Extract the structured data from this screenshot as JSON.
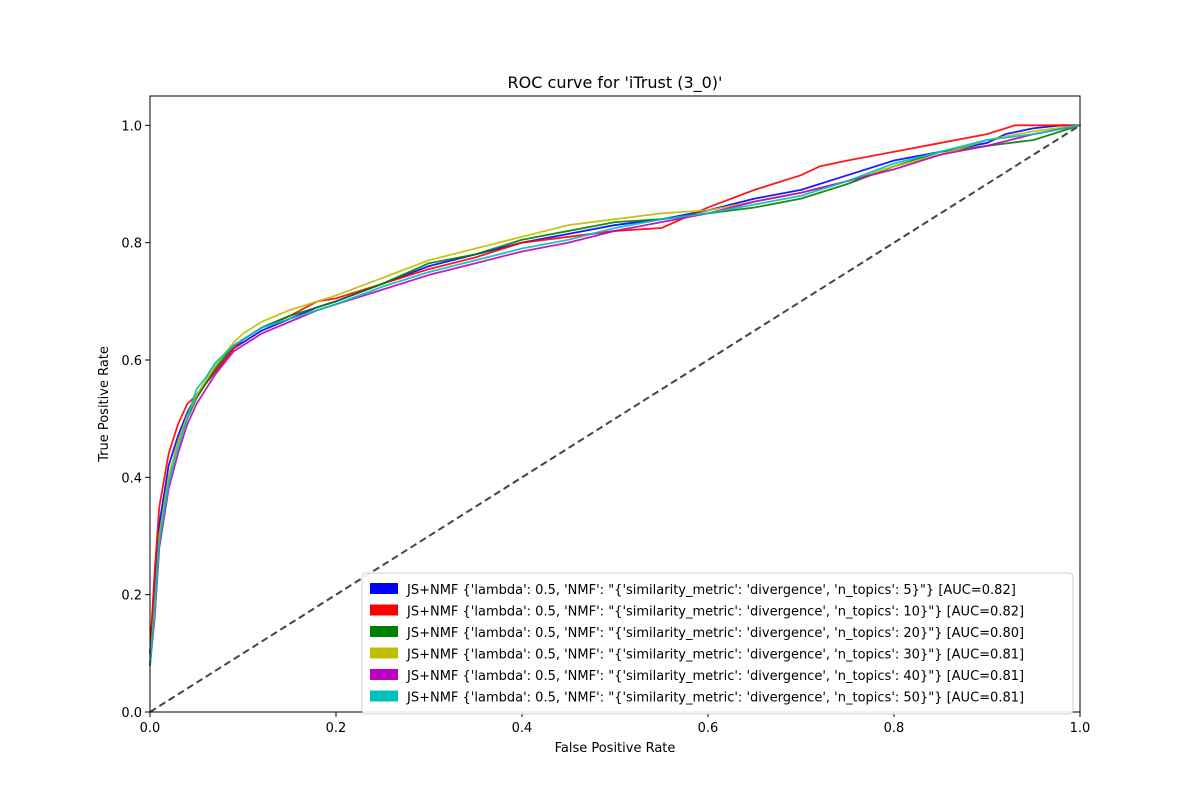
{
  "chart_data": {
    "type": "line",
    "title": "ROC curve for 'iTrust (3_0)'",
    "xlabel": "False Positive Rate",
    "ylabel": "True Positive Rate",
    "xlim": [
      0.0,
      1.0
    ],
    "ylim": [
      0.0,
      1.05
    ],
    "xticks": [
      "0.0",
      "0.2",
      "0.4",
      "0.6",
      "0.8",
      "1.0"
    ],
    "yticks": [
      "0.0",
      "0.2",
      "0.4",
      "0.6",
      "0.8",
      "1.0"
    ],
    "grid": false,
    "legend_position": "lower-right",
    "chance_line": {
      "x": [
        0,
        1
      ],
      "y": [
        0,
        1
      ],
      "style": "dashed",
      "color": "#444444"
    },
    "series": [
      {
        "name": "JS+NMF {'lambda': 0.5, 'NMF': \"{'similarity_metric': 'divergence', 'n_topics': 5}\"} [AUC=0.82]",
        "color": "#0000ff",
        "x": [
          0,
          0.005,
          0.01,
          0.02,
          0.03,
          0.04,
          0.05,
          0.06,
          0.07,
          0.08,
          0.09,
          0.1,
          0.12,
          0.15,
          0.18,
          0.2,
          0.25,
          0.3,
          0.35,
          0.4,
          0.45,
          0.5,
          0.55,
          0.6,
          0.65,
          0.7,
          0.75,
          0.8,
          0.85,
          0.9,
          0.92,
          0.95,
          0.98,
          1.0
        ],
        "y": [
          0.1,
          0.22,
          0.32,
          0.42,
          0.47,
          0.51,
          0.54,
          0.56,
          0.58,
          0.6,
          0.62,
          0.63,
          0.65,
          0.67,
          0.69,
          0.7,
          0.73,
          0.76,
          0.78,
          0.8,
          0.815,
          0.83,
          0.84,
          0.855,
          0.875,
          0.89,
          0.915,
          0.94,
          0.955,
          0.97,
          0.985,
          0.995,
          1.0,
          1.0
        ]
      },
      {
        "name": "JS+NMF {'lambda': 0.5, 'NMF': \"{'similarity_metric': 'divergence', 'n_topics': 10}\"} [AUC=0.82]",
        "color": "#ff0000",
        "x": [
          0,
          0.005,
          0.01,
          0.02,
          0.03,
          0.04,
          0.05,
          0.06,
          0.07,
          0.08,
          0.09,
          0.1,
          0.12,
          0.15,
          0.18,
          0.2,
          0.25,
          0.3,
          0.35,
          0.4,
          0.45,
          0.5,
          0.55,
          0.6,
          0.65,
          0.7,
          0.72,
          0.75,
          0.8,
          0.85,
          0.9,
          0.93,
          0.96,
          1.0
        ],
        "y": [
          0.1,
          0.24,
          0.35,
          0.44,
          0.49,
          0.525,
          0.54,
          0.56,
          0.58,
          0.6,
          0.62,
          0.635,
          0.655,
          0.675,
          0.7,
          0.705,
          0.73,
          0.755,
          0.775,
          0.8,
          0.81,
          0.82,
          0.825,
          0.86,
          0.89,
          0.915,
          0.93,
          0.94,
          0.955,
          0.97,
          0.985,
          1.0,
          1.0,
          1.0
        ]
      },
      {
        "name": "JS+NMF {'lambda': 0.5, 'NMF': \"{'similarity_metric': 'divergence', 'n_topics': 20}\"} [AUC=0.80]",
        "color": "#008000",
        "x": [
          0,
          0.005,
          0.01,
          0.02,
          0.03,
          0.04,
          0.05,
          0.06,
          0.07,
          0.08,
          0.09,
          0.1,
          0.12,
          0.15,
          0.18,
          0.2,
          0.25,
          0.3,
          0.35,
          0.4,
          0.45,
          0.5,
          0.55,
          0.6,
          0.65,
          0.7,
          0.75,
          0.8,
          0.85,
          0.9,
          0.95,
          1.0
        ],
        "y": [
          0.08,
          0.18,
          0.3,
          0.4,
          0.46,
          0.5,
          0.535,
          0.56,
          0.585,
          0.605,
          0.625,
          0.635,
          0.655,
          0.675,
          0.69,
          0.7,
          0.73,
          0.765,
          0.78,
          0.805,
          0.82,
          0.835,
          0.84,
          0.85,
          0.86,
          0.875,
          0.9,
          0.93,
          0.955,
          0.965,
          0.975,
          1.0
        ]
      },
      {
        "name": "JS+NMF {'lambda': 0.5, 'NMF': \"{'similarity_metric': 'divergence', 'n_topics': 30}\"} [AUC=0.81]",
        "color": "#bfbf00",
        "x": [
          0,
          0.005,
          0.01,
          0.02,
          0.03,
          0.04,
          0.05,
          0.06,
          0.07,
          0.08,
          0.09,
          0.1,
          0.12,
          0.15,
          0.18,
          0.2,
          0.25,
          0.3,
          0.35,
          0.4,
          0.45,
          0.5,
          0.55,
          0.6,
          0.65,
          0.7,
          0.75,
          0.8,
          0.85,
          0.9,
          0.95,
          1.0
        ],
        "y": [
          0.08,
          0.18,
          0.3,
          0.4,
          0.46,
          0.505,
          0.54,
          0.565,
          0.59,
          0.61,
          0.63,
          0.645,
          0.665,
          0.685,
          0.7,
          0.71,
          0.74,
          0.77,
          0.79,
          0.81,
          0.83,
          0.84,
          0.85,
          0.855,
          0.87,
          0.885,
          0.905,
          0.93,
          0.95,
          0.975,
          0.99,
          1.0
        ]
      },
      {
        "name": "JS+NMF {'lambda': 0.5, 'NMF': \"{'similarity_metric': 'divergence', 'n_topics': 40}\"} [AUC=0.81]",
        "color": "#bf00bf",
        "x": [
          0,
          0.005,
          0.01,
          0.02,
          0.03,
          0.04,
          0.05,
          0.06,
          0.07,
          0.08,
          0.09,
          0.1,
          0.12,
          0.15,
          0.18,
          0.2,
          0.25,
          0.3,
          0.35,
          0.4,
          0.45,
          0.5,
          0.55,
          0.6,
          0.65,
          0.7,
          0.75,
          0.8,
          0.85,
          0.9,
          0.95,
          1.0
        ],
        "y": [
          0.08,
          0.16,
          0.28,
          0.38,
          0.44,
          0.49,
          0.525,
          0.55,
          0.575,
          0.595,
          0.615,
          0.625,
          0.645,
          0.665,
          0.685,
          0.695,
          0.72,
          0.745,
          0.765,
          0.785,
          0.8,
          0.82,
          0.835,
          0.85,
          0.87,
          0.885,
          0.905,
          0.925,
          0.95,
          0.965,
          0.985,
          1.0
        ]
      },
      {
        "name": "JS+NMF {'lambda': 0.5, 'NMF': \"{'similarity_metric': 'divergence', 'n_topics': 50}\"} [AUC=0.81]",
        "color": "#00bfbf",
        "x": [
          0,
          0.005,
          0.01,
          0.02,
          0.03,
          0.04,
          0.05,
          0.06,
          0.07,
          0.08,
          0.09,
          0.1,
          0.12,
          0.15,
          0.18,
          0.2,
          0.25,
          0.3,
          0.35,
          0.4,
          0.45,
          0.5,
          0.55,
          0.6,
          0.65,
          0.7,
          0.75,
          0.8,
          0.85,
          0.9,
          0.95,
          1.0
        ],
        "y": [
          0.08,
          0.17,
          0.29,
          0.39,
          0.45,
          0.5,
          0.55,
          0.57,
          0.595,
          0.61,
          0.625,
          0.635,
          0.655,
          0.67,
          0.685,
          0.695,
          0.725,
          0.75,
          0.77,
          0.79,
          0.805,
          0.825,
          0.84,
          0.85,
          0.865,
          0.88,
          0.905,
          0.935,
          0.955,
          0.975,
          0.985,
          1.0
        ]
      }
    ]
  }
}
